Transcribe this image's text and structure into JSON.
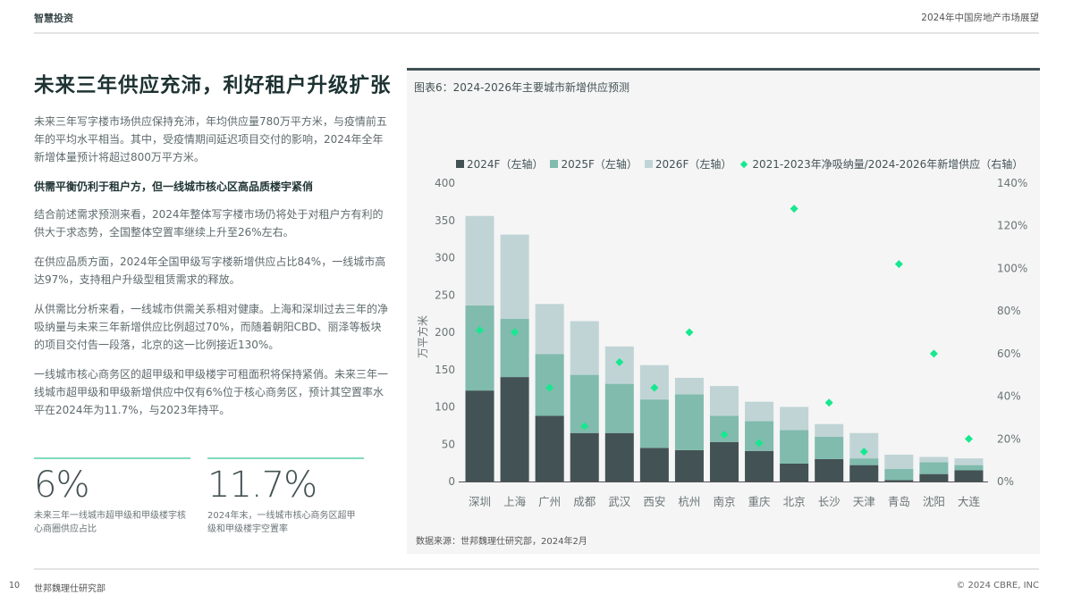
{
  "header": {
    "left": "智慧投资",
    "right": "2024年中国房地产市场展望"
  },
  "main_title": "未来三年供应充沛，利好租户升级扩张",
  "paragraphs": [
    "未来三年写字楼市场供应保持充沛，年均供应量780万平方米，与疫情前五年的平均水平相当。其中，受疫情期间延迟项目交付的影响，2024年全年新增体量预计将超过800万平方米。",
    "供需平衡仍利于租户方，但一线城市核心区高品质楼宇紧俏",
    "结合前述需求预测来看，2024年整体写字楼市场仍将处于对租户方有利的供大于求态势，全国整体空置率继续上升至26%左右。",
    "在供应品质方面，2024年全国甲级写字楼新增供应占比84%，一线城市高达97%，支持租户升级型租赁需求的释放。",
    "从供需比分析来看，一线城市供需关系相对健康。上海和深圳过去三年的净吸纳量与未来三年新增供应比例超过70%，而随着朝阳CBD、丽泽等板块的项目交付告一段落，北京的这一比例接近130%。",
    "一线城市核心商务区的超甲级和甲级楼宇可租面积将保持紧俏。未来三年一线城市超甲级和甲级新增供应中仅有6%位于核心商务区，预计其空置率水平在2024年为11.7%，与2023年持平。"
  ],
  "stats": [
    {
      "value": "6%",
      "caption": "未来三年一线城市超甲级和甲级楼宇核心商圈供应占比"
    },
    {
      "value": "11.7%",
      "caption": "2024年末，一线城市核心商务区超甲级和甲级楼宇空置率"
    }
  ],
  "chart_panel": {
    "title": "图表6：2024-2026年主要城市新增供应预测",
    "source": "数据来源：世邦魏理仕研究部，2024年2月",
    "legend": [
      {
        "label": "2024F（左轴）",
        "color": "#435254",
        "shape": "square"
      },
      {
        "label": "2025F（左轴）",
        "color": "#80bbad",
        "shape": "square"
      },
      {
        "label": "2026F（左轴）",
        "color": "#c0d4d6",
        "shape": "square"
      },
      {
        "label": "2021-2023年净吸纳量/2024-2026年新增供应（右轴）",
        "color": "#17e88f",
        "shape": "diamond"
      }
    ]
  },
  "chart_data": {
    "type": "bar",
    "stacked": true,
    "title": "图表6：2024-2026年主要城市新增供应预测",
    "xlabel": "",
    "ylabel": "万平方米",
    "ylim": [
      0,
      400
    ],
    "yticks": [
      0,
      50,
      100,
      150,
      200,
      250,
      300,
      350,
      400
    ],
    "y2lim": [
      0,
      140
    ],
    "y2ticks": [
      "0%",
      "20%",
      "40%",
      "60%",
      "80%",
      "100%",
      "120%",
      "140%"
    ],
    "grid": false,
    "legend_position": "top",
    "categories": [
      "深圳",
      "上海",
      "广州",
      "成都",
      "武汉",
      "西安",
      "杭州",
      "南京",
      "重庆",
      "北京",
      "长沙",
      "天津",
      "青岛",
      "沈阳",
      "大连"
    ],
    "series": [
      {
        "name": "2024F（左轴）",
        "axis": "left",
        "type": "bar",
        "color": "#435254",
        "values": [
          122,
          140,
          88,
          65,
          65,
          45,
          42,
          53,
          41,
          24,
          30,
          22,
          2,
          10,
          15
        ]
      },
      {
        "name": "2025F（左轴）",
        "axis": "left",
        "type": "bar",
        "color": "#80bbad",
        "values": [
          114,
          78,
          83,
          78,
          66,
          65,
          75,
          35,
          40,
          45,
          30,
          9,
          15,
          16,
          7
        ]
      },
      {
        "name": "2026F（左轴）",
        "axis": "left",
        "type": "bar",
        "color": "#c0d4d6",
        "values": [
          120,
          113,
          67,
          72,
          50,
          46,
          22,
          40,
          26,
          31,
          17,
          34,
          19,
          7,
          9
        ]
      },
      {
        "name": "2021-2023年净吸纳量/2024-2026年新增供应（右轴）",
        "axis": "right",
        "type": "scatter",
        "color": "#17e88f",
        "values": [
          71,
          70,
          44,
          26,
          56,
          44,
          70,
          22,
          18,
          128,
          37,
          14,
          102,
          60,
          20
        ]
      }
    ]
  },
  "footer": {
    "page": "10",
    "org": "世邦魏理仕研究部",
    "copyright": "© 2024 CBRE, INC"
  }
}
